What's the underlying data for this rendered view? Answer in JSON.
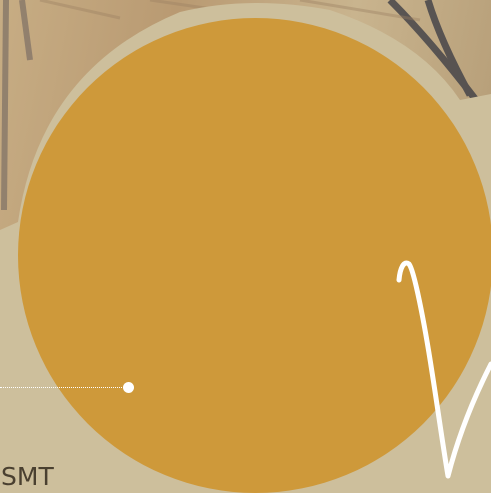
{
  "label": {
    "text": "SMT"
  },
  "colors": {
    "gold": "#ce993a",
    "beige": "#cdbf9c",
    "wood": "#b79a73",
    "white": "#ffffff",
    "text": "#4a4030"
  },
  "icons": {
    "pointer": "pointer-dot-icon",
    "squiggle": "white-squiggle-icon"
  }
}
